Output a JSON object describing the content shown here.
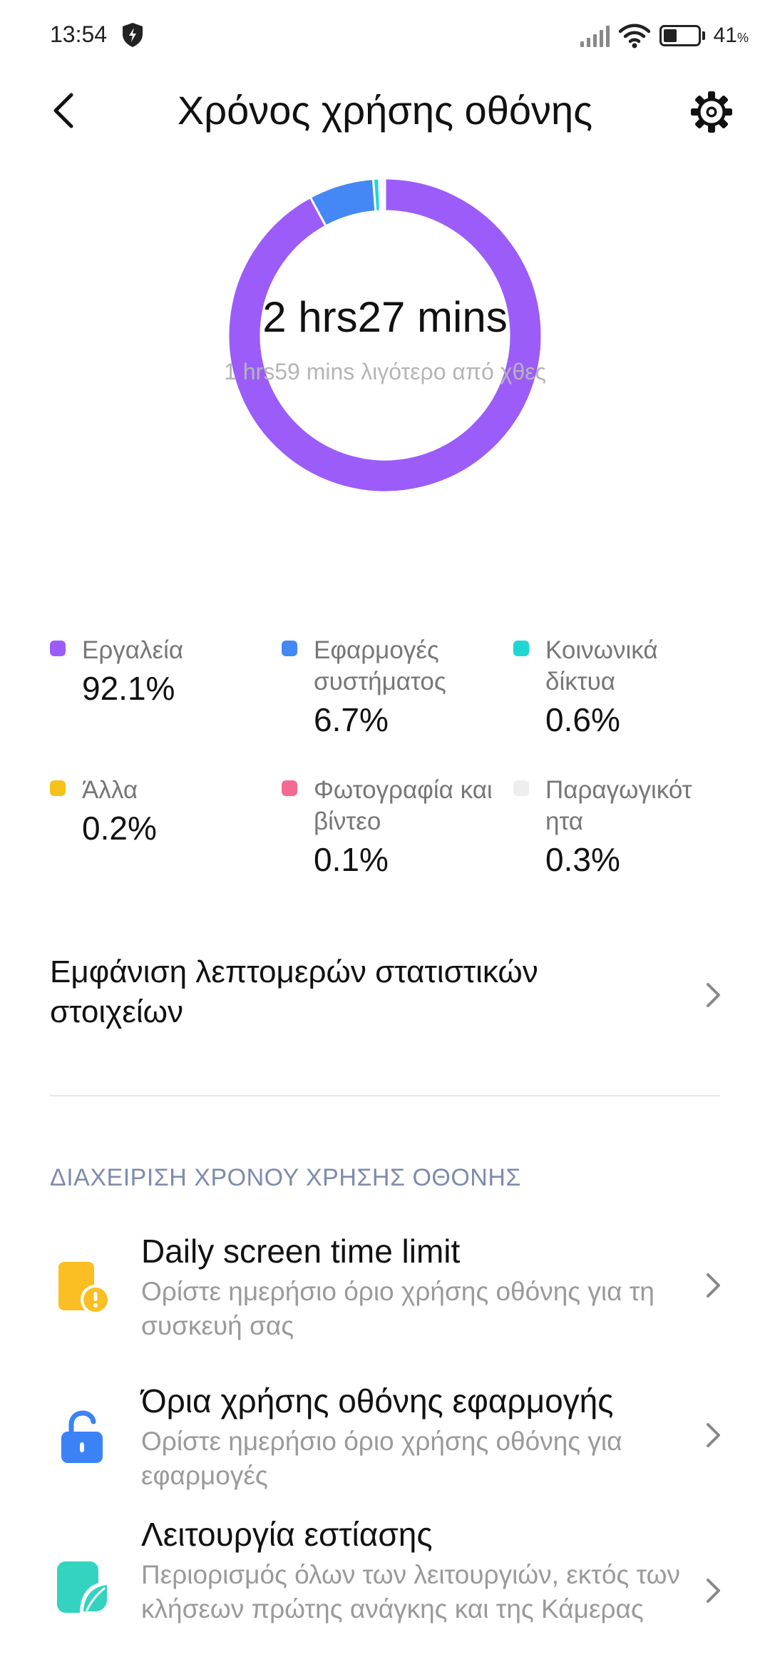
{
  "status_bar": {
    "time": "13:54",
    "battery_percent": "41",
    "battery_unit": "%",
    "battery_level": 0.41,
    "icons": [
      "shield-bolt-icon",
      "signal-icon",
      "wifi-icon",
      "battery-icon"
    ]
  },
  "header": {
    "title": "Χρόνος χρήσης οθόνης",
    "back_icon": "chevron-left-icon",
    "settings_icon": "gear-icon"
  },
  "summary": {
    "total": "2 hrs27 mins",
    "comparison": "1 hrs59 mins λιγότερο από χθες"
  },
  "chart_data": {
    "type": "pie",
    "categories": [
      "Εργαλεία",
      "Εφαρμογές συστήματος",
      "Κοινωνικά δίκτυα",
      "Άλλα",
      "Φωτογραφία και βίντεο",
      "Παραγωγικότητα"
    ],
    "values": [
      92.1,
      6.7,
      0.6,
      0.2,
      0.1,
      0.3
    ],
    "colors": [
      "#9b5cfa",
      "#4388f5",
      "#1fd6d2",
      "#f5c21b",
      "#f46a92",
      "#e8e8e8"
    ]
  },
  "legend": [
    {
      "name": "Εργαλεία",
      "value": "92.1%",
      "color": "#9b5cfa"
    },
    {
      "name": "Εφαρμογές συστήματος",
      "value": "6.7%",
      "color": "#4388f5"
    },
    {
      "name": "Κοινωνικά δίκτυα",
      "value": "0.6%",
      "color": "#1fd6d2"
    },
    {
      "name": "Άλλα",
      "value": "0.2%",
      "color": "#f5c21b"
    },
    {
      "name": "Φωτογραφία και βίντεο",
      "value": "0.1%",
      "color": "#f46a92"
    },
    {
      "name": "Παραγωγικότ ητα",
      "value": "0.3%",
      "color": "#eeeeee"
    }
  ],
  "details": {
    "label": "Εμφάνιση λεπτομερών στατιστικών στοιχείων"
  },
  "management": {
    "section_title": "ΔΙΑΧΕΙΡΙΣΗ ΧΡΟΝΟΥ ΧΡΗΣΗΣ ΟΘΟΝΗΣ",
    "items": [
      {
        "title": "Daily screen time limit",
        "description": "Ορίστε ημερήσιο όριο χρήσης οθόνης για τη συσκευή σας",
        "icon": "phone-warning-icon",
        "color": "#fbbf24"
      },
      {
        "title": "Όρια χρήσης οθόνης εφαρμογής",
        "description": "Ορίστε ημερήσιο όριο χρήσης οθόνης για εφαρμογές",
        "icon": "unlock-icon",
        "color": "#3b82f6"
      },
      {
        "title": "Λειτουργία εστίασης",
        "description": "Περιορισμός όλων των λειτουργιών, εκτός των κλήσεων πρώτης ανάγκης και της Κάμερας",
        "icon": "focus-leaf-icon",
        "color": "#34d3bf"
      }
    ]
  }
}
